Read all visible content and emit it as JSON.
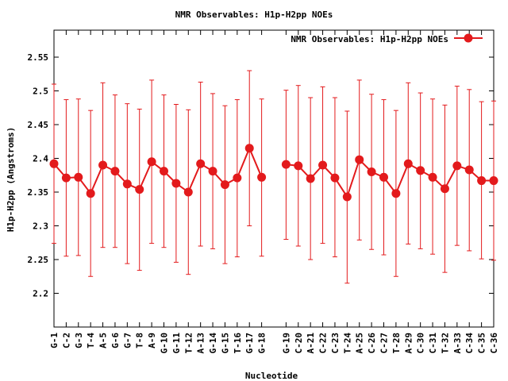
{
  "chart_data": {
    "type": "line",
    "title": "NMR Observables: H1p-H2pp NOEs",
    "xlabel": "Nucleotide",
    "ylabel": "H1p-H2pp (Angstroms)",
    "ylim": [
      2.15,
      2.59
    ],
    "yticks": [
      2.2,
      2.25,
      2.3,
      2.35,
      2.4,
      2.45,
      2.5,
      2.55
    ],
    "grid": false,
    "legend_position": "top-right",
    "series": [
      {
        "name": "NMR Observables: H1p-H2pp NOEs",
        "color": "#e31a1c",
        "segments": [
          {
            "categories": [
              "G-1",
              "C-2",
              "G-3",
              "T-4",
              "A-5",
              "G-6",
              "G-7",
              "T-8",
              "A-9",
              "G-10",
              "G-11",
              "T-12",
              "A-13",
              "G-14",
              "G-15",
              "T-16",
              "G-17",
              "G-18"
            ],
            "values": [
              2.392,
              2.371,
              2.372,
              2.348,
              2.39,
              2.381,
              2.362,
              2.354,
              2.395,
              2.381,
              2.363,
              2.35,
              2.392,
              2.381,
              2.361,
              2.371,
              2.415,
              2.372
            ],
            "err_low": [
              2.274,
              2.255,
              2.256,
              2.225,
              2.268,
              2.268,
              2.244,
              2.234,
              2.274,
              2.268,
              2.246,
              2.228,
              2.27,
              2.266,
              2.244,
              2.254,
              2.3,
              2.255
            ],
            "err_high": [
              2.51,
              2.487,
              2.488,
              2.471,
              2.512,
              2.494,
              2.481,
              2.473,
              2.516,
              2.494,
              2.48,
              2.472,
              2.513,
              2.496,
              2.478,
              2.487,
              2.53,
              2.488
            ]
          },
          {
            "categories": [
              "G-19",
              "C-20",
              "A-21",
              "C-22",
              "C-23",
              "T-24",
              "A-25",
              "C-26",
              "C-27",
              "T-28",
              "A-29",
              "C-30",
              "C-31",
              "T-32",
              "A-33",
              "C-34",
              "C-35",
              "C-36"
            ],
            "values": [
              2.391,
              2.389,
              2.37,
              2.39,
              2.371,
              2.343,
              2.398,
              2.38,
              2.372,
              2.348,
              2.392,
              2.382,
              2.372,
              2.355,
              2.389,
              2.383,
              2.367,
              2.367
            ],
            "err_low": [
              2.28,
              2.27,
              2.25,
              2.274,
              2.254,
              2.215,
              2.279,
              2.265,
              2.257,
              2.225,
              2.273,
              2.266,
              2.258,
              2.231,
              2.271,
              2.263,
              2.251,
              2.249
            ],
            "err_high": [
              2.501,
              2.508,
              2.49,
              2.506,
              2.49,
              2.47,
              2.516,
              2.495,
              2.487,
              2.471,
              2.512,
              2.497,
              2.488,
              2.479,
              2.507,
              2.502,
              2.484,
              2.485
            ]
          }
        ]
      }
    ]
  }
}
